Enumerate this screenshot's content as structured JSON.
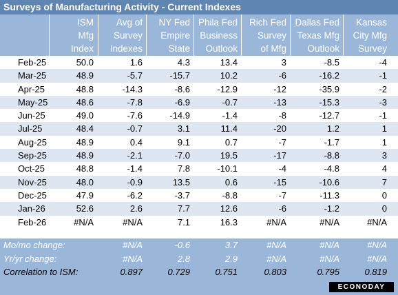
{
  "title": "Surveys of Manufacturing Activity - Current Indexes",
  "columns": [
    {
      "lines": [
        "ISM",
        "Mfg",
        "Index"
      ]
    },
    {
      "lines": [
        "Avg of",
        "Survey",
        "Indexes"
      ]
    },
    {
      "lines": [
        "NY Fed",
        "Empire",
        "State"
      ]
    },
    {
      "lines": [
        "Phila Fed",
        "Business",
        "Outlook"
      ]
    },
    {
      "lines": [
        "Rich Fed",
        "Survey",
        "of Mfg"
      ]
    },
    {
      "lines": [
        "Dallas Fed",
        "Texas Mfg",
        "Outlook"
      ]
    },
    {
      "lines": [
        "Kansas",
        "City Mfg",
        "Survey"
      ]
    }
  ],
  "chart_data": {
    "type": "table",
    "title": "Surveys of Manufacturing Activity - Current Indexes",
    "rows": [
      {
        "month": "Feb-25",
        "values": [
          "50.0",
          "1.6",
          "4.3",
          "13.4",
          "3",
          "-8.5",
          "-4"
        ]
      },
      {
        "month": "Mar-25",
        "values": [
          "48.9",
          "-5.7",
          "-15.7",
          "10.2",
          "-6",
          "-16.2",
          "-1"
        ]
      },
      {
        "month": "Apr-25",
        "values": [
          "48.8",
          "-14.3",
          "-8.6",
          "-12.9",
          "-12",
          "-35.9",
          "-2"
        ]
      },
      {
        "month": "May-25",
        "values": [
          "48.6",
          "-7.8",
          "-6.9",
          "-0.7",
          "-13",
          "-15.3",
          "-3"
        ]
      },
      {
        "month": "Jun-25",
        "values": [
          "49.0",
          "-7.6",
          "-14.9",
          "-1.4",
          "-8",
          "-12.7",
          "-1"
        ]
      },
      {
        "month": "Jul-25",
        "values": [
          "48.4",
          "-0.7",
          "3.1",
          "11.4",
          "-20",
          "1.2",
          "1"
        ]
      },
      {
        "month": "Aug-25",
        "values": [
          "48.9",
          "0.4",
          "9.1",
          "0.7",
          "-7",
          "-1.7",
          "1"
        ]
      },
      {
        "month": "Sep-25",
        "values": [
          "48.9",
          "-2.1",
          "-7.0",
          "19.5",
          "-17",
          "-8.8",
          "3"
        ]
      },
      {
        "month": "Oct-25",
        "values": [
          "48.8",
          "-1.4",
          "7.8",
          "-10.1",
          "-4",
          "-4.8",
          "4"
        ]
      },
      {
        "month": "Nov-25",
        "values": [
          "48.0",
          "-0.9",
          "13.5",
          "0.6",
          "-15",
          "-10.6",
          "7"
        ]
      },
      {
        "month": "Dec-25",
        "values": [
          "47.9",
          "-6.2",
          "-3.7",
          "-8.8",
          "-7",
          "-11.3",
          "0"
        ]
      },
      {
        "month": "Jan-26",
        "values": [
          "52.6",
          "2.6",
          "7.7",
          "12.6",
          "-6",
          "-1.2",
          "0"
        ]
      },
      {
        "month": "Feb-26",
        "values": [
          "#N/A",
          "#N/A",
          "7.1",
          "16.3",
          "#N/A",
          "#N/A",
          "#N/A"
        ]
      }
    ],
    "summary": [
      {
        "label": "Mo/mo change:",
        "values": [
          "",
          "#N/A",
          "-0.6",
          "3.7",
          "#N/A",
          "#N/A",
          "#N/A"
        ],
        "style": "light"
      },
      {
        "label": "Yr/yr change:",
        "values": [
          "",
          "#N/A",
          "2.8",
          "2.9",
          "#N/A",
          "#N/A",
          "#N/A"
        ],
        "style": "light"
      },
      {
        "label": "Correlation to ISM:",
        "values": [
          "",
          "0.897",
          "0.729",
          "0.751",
          "0.803",
          "0.795",
          "0.819"
        ],
        "style": "dark"
      }
    ]
  },
  "logo_text": "ECONODAY"
}
